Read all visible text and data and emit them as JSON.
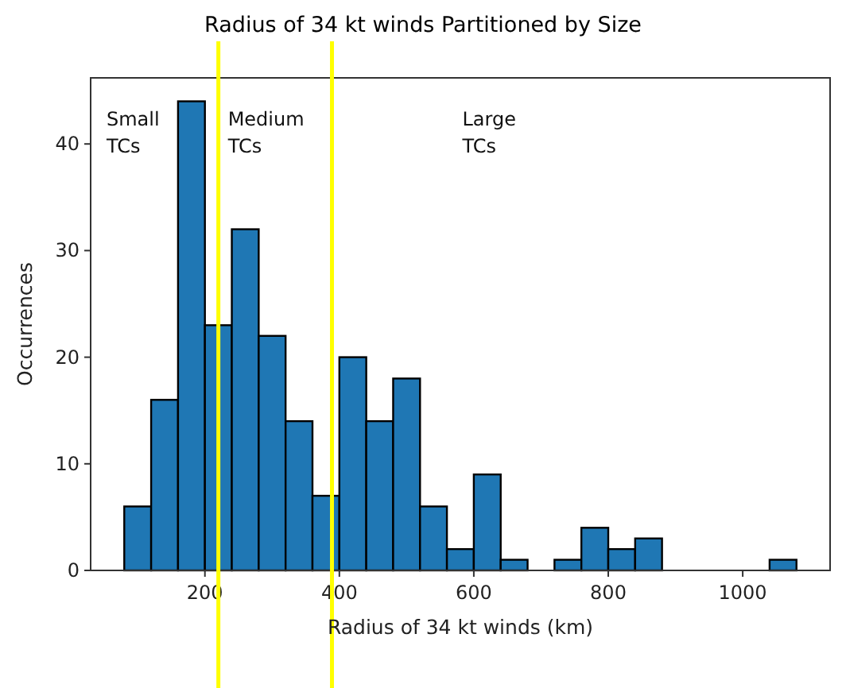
{
  "chart_data": {
    "type": "histogram",
    "title": "Radius of 34 kt winds Partitioned by Size",
    "xlabel": "Radius of 34 kt winds (km)",
    "ylabel": "Occurrences",
    "bins": [
      80,
      120,
      160,
      200,
      240,
      280,
      320,
      360,
      400,
      440,
      480,
      520,
      560,
      600,
      640,
      680,
      720,
      760,
      800,
      840,
      880,
      920,
      960,
      1000,
      1040,
      1080
    ],
    "values": [
      6,
      16,
      44,
      23,
      32,
      22,
      14,
      7,
      20,
      14,
      18,
      6,
      2,
      9,
      1,
      0,
      1,
      4,
      2,
      3,
      0,
      0,
      0,
      0,
      1
    ],
    "color": "#1f77b4",
    "xlim": [
      30,
      1130
    ],
    "ylim": [
      0,
      46.2
    ],
    "xticks": [
      200,
      400,
      600,
      800,
      1000
    ],
    "yticks": [
      0,
      10,
      20,
      30,
      40
    ],
    "ref_lines": [
      {
        "axis": "x",
        "value": 220,
        "color": "#ffff00"
      },
      {
        "axis": "x",
        "value": 389,
        "color": "#ffff00"
      }
    ],
    "annotations": [
      "Small\nTCs",
      "Medium\nTCs",
      "Large\nTCs"
    ]
  }
}
